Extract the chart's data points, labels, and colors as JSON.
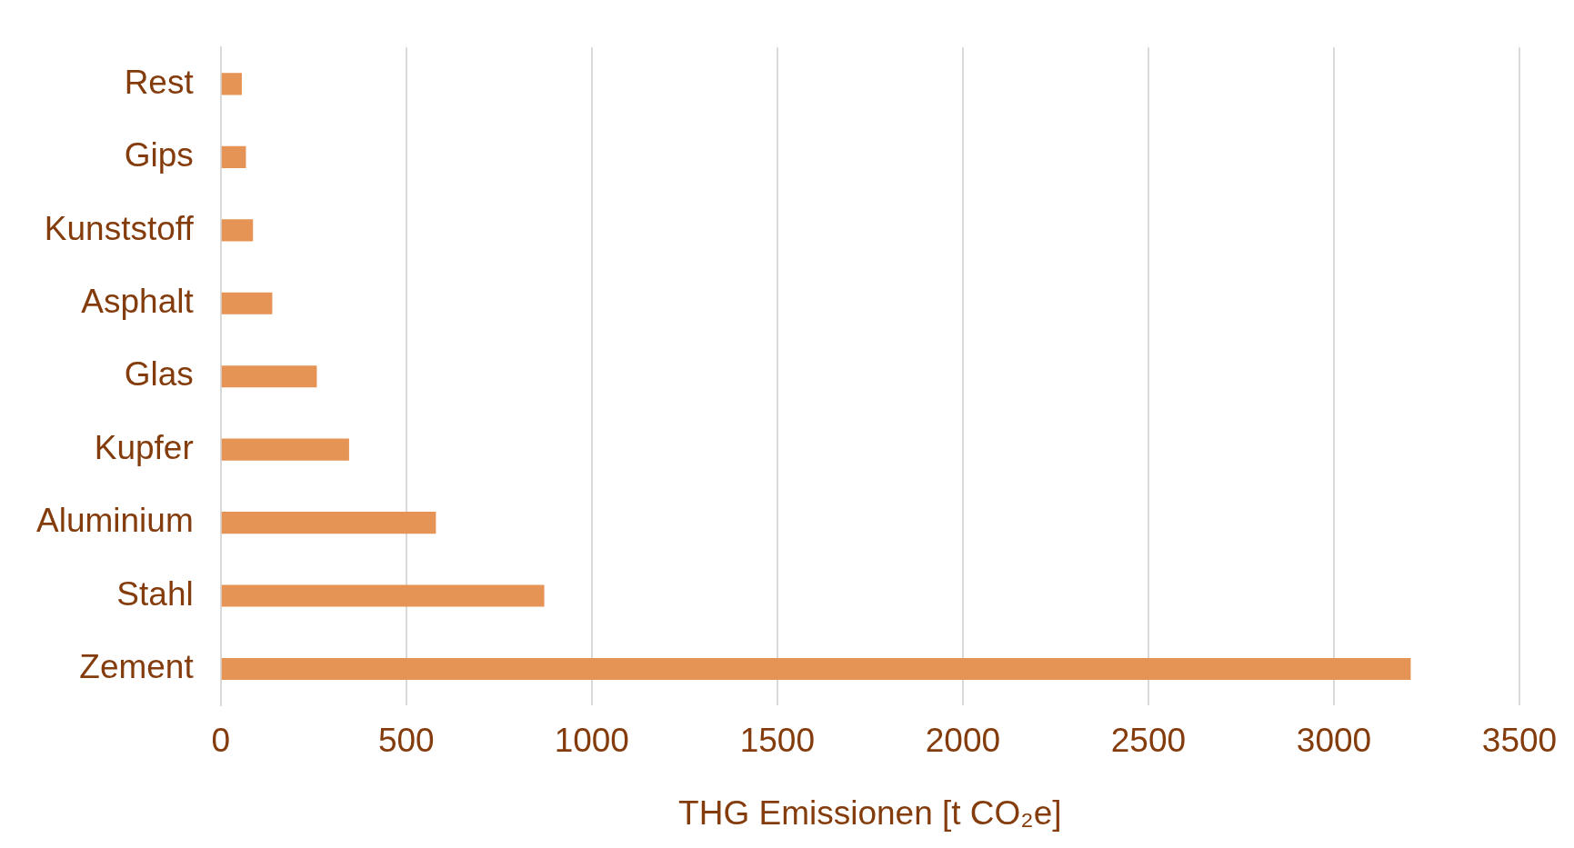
{
  "chart_data": {
    "type": "bar",
    "orientation": "horizontal",
    "xlabel": "THG Emissionen [t CO₂e]",
    "categories": [
      "Rest",
      "Gips",
      "Kunststoff",
      "Asphalt",
      "Glas",
      "Kupfer",
      "Aluminium",
      "Stahl",
      "Zement"
    ],
    "values": [
      57,
      68,
      87,
      139,
      259,
      346,
      580,
      872,
      3207
    ],
    "color": "#e69455",
    "xlim": [
      0,
      3500
    ],
    "xticks": [
      0,
      500,
      1000,
      1500,
      2000,
      2500,
      3000,
      3500
    ],
    "grid": "x",
    "legend": false
  }
}
